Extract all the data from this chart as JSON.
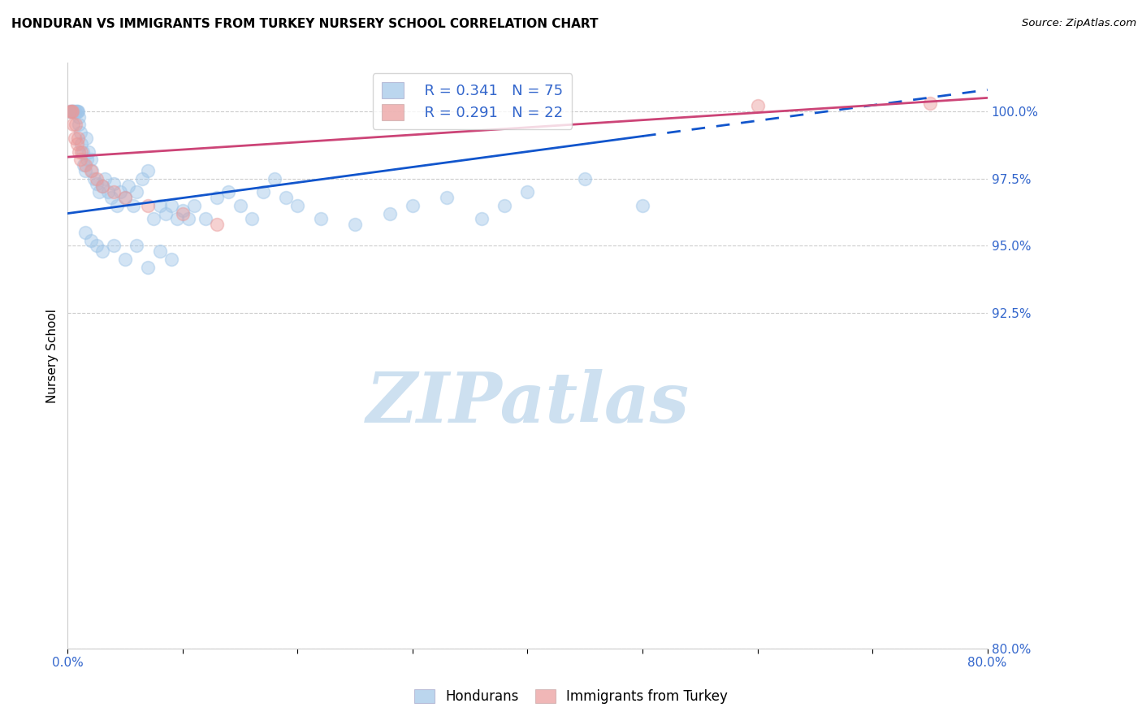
{
  "title": "HONDURAN VS IMMIGRANTS FROM TURKEY NURSERY SCHOOL CORRELATION CHART",
  "source": "Source: ZipAtlas.com",
  "ylabel": "Nursery School",
  "xlim": [
    0.0,
    80.0
  ],
  "ylim": [
    80.0,
    101.8
  ],
  "yticks": [
    80.0,
    92.5,
    95.0,
    97.5,
    100.0
  ],
  "ytick_labels": [
    "80.0%",
    "92.5%",
    "95.0%",
    "97.5%",
    "100.0%"
  ],
  "xtick_labels": [
    "0.0%",
    "",
    "",
    "",
    "",
    "",
    "",
    "",
    "80.0%"
  ],
  "blue_color": "#9fc5e8",
  "pink_color": "#ea9999",
  "blue_line_color": "#1155cc",
  "pink_line_color": "#cc4477",
  "legend_r_blue": "R = 0.341",
  "legend_n_blue": "N = 75",
  "legend_r_pink": "R = 0.291",
  "legend_n_pink": "N = 22",
  "blue_scatter_x": [
    0.2,
    0.3,
    0.4,
    0.5,
    0.5,
    0.6,
    0.7,
    0.8,
    0.8,
    0.9,
    1.0,
    1.0,
    1.1,
    1.2,
    1.3,
    1.4,
    1.5,
    1.6,
    1.7,
    1.8,
    2.0,
    2.1,
    2.3,
    2.5,
    2.7,
    3.0,
    3.2,
    3.5,
    3.8,
    4.0,
    4.3,
    4.6,
    5.0,
    5.3,
    5.7,
    6.0,
    6.5,
    7.0,
    7.5,
    8.0,
    8.5,
    9.0,
    9.5,
    10.0,
    10.5,
    11.0,
    12.0,
    13.0,
    14.0,
    15.0,
    16.0,
    17.0,
    18.0,
    19.0,
    20.0,
    22.0,
    25.0,
    28.0,
    30.0,
    33.0,
    36.0,
    38.0,
    40.0,
    45.0,
    50.0,
    1.5,
    2.0,
    2.5,
    3.0,
    4.0,
    5.0,
    6.0,
    7.0,
    8.0,
    9.0
  ],
  "blue_scatter_y": [
    100.0,
    100.0,
    100.0,
    100.0,
    100.0,
    100.0,
    100.0,
    100.0,
    100.0,
    100.0,
    99.8,
    99.5,
    99.2,
    98.8,
    98.5,
    98.0,
    97.8,
    99.0,
    98.2,
    98.5,
    98.2,
    97.8,
    97.5,
    97.3,
    97.0,
    97.2,
    97.5,
    97.0,
    96.8,
    97.3,
    96.5,
    97.0,
    96.8,
    97.2,
    96.5,
    97.0,
    97.5,
    97.8,
    96.0,
    96.5,
    96.2,
    96.5,
    96.0,
    96.3,
    96.0,
    96.5,
    96.0,
    96.8,
    97.0,
    96.5,
    96.0,
    97.0,
    97.5,
    96.8,
    96.5,
    96.0,
    95.8,
    96.2,
    96.5,
    96.8,
    96.0,
    96.5,
    97.0,
    97.5,
    96.5,
    95.5,
    95.2,
    95.0,
    94.8,
    95.0,
    94.5,
    95.0,
    94.2,
    94.8,
    94.5
  ],
  "pink_scatter_x": [
    0.2,
    0.3,
    0.4,
    0.5,
    0.6,
    0.7,
    0.8,
    0.9,
    1.0,
    1.1,
    1.2,
    1.5,
    2.0,
    2.5,
    3.0,
    4.0,
    5.0,
    7.0,
    10.0,
    13.0,
    60.0,
    75.0
  ],
  "pink_scatter_y": [
    100.0,
    100.0,
    100.0,
    99.5,
    99.0,
    99.5,
    98.8,
    99.0,
    98.5,
    98.2,
    98.5,
    98.0,
    97.8,
    97.5,
    97.2,
    97.0,
    96.8,
    96.5,
    96.2,
    95.8,
    100.2,
    100.3
  ],
  "blue_trend_x0": 0.0,
  "blue_trend_y0": 96.2,
  "blue_trend_x1": 80.0,
  "blue_trend_y1": 100.8,
  "blue_solid_end_x": 50.0,
  "pink_trend_x0": 0.0,
  "pink_trend_y0": 98.3,
  "pink_trend_x1": 80.0,
  "pink_trend_y1": 100.5,
  "watermark_text": "ZIPatlas",
  "watermark_color": "#cde0f0",
  "grid_color": "#cccccc",
  "marker_size": 130,
  "marker_alpha": 0.45,
  "marker_lw": 1.2
}
